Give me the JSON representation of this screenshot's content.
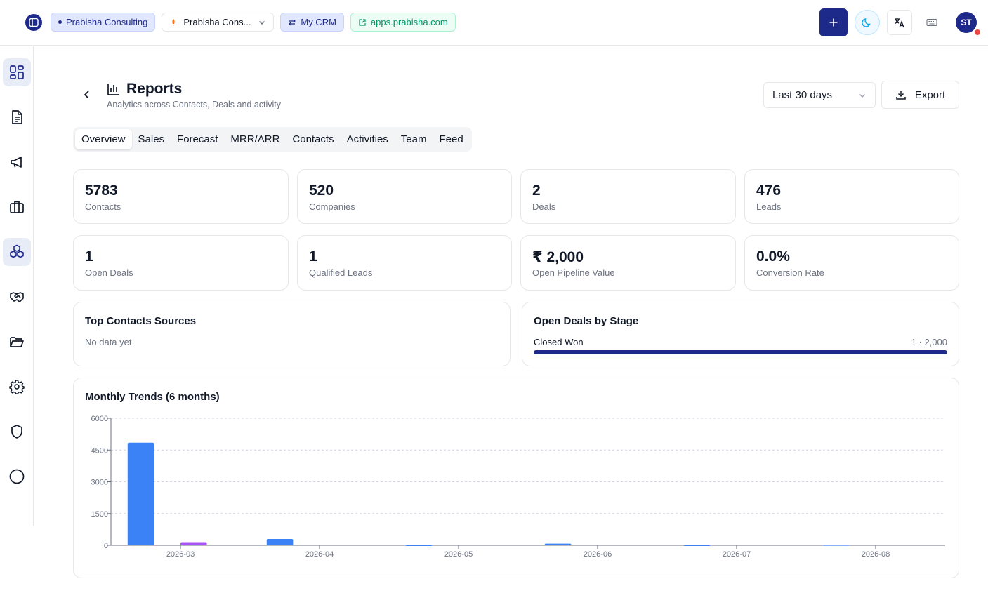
{
  "topbar": {
    "org_chip": "Prabisha Consulting",
    "workspace_select": "Prabisha Cons...",
    "crm_chip": "My CRM",
    "site_link": "apps.prabisha.com",
    "avatar_initials": "ST"
  },
  "sidenav": {
    "items": [
      {
        "icon": "dashboard-icon",
        "active": true
      },
      {
        "icon": "document-icon",
        "active": false
      },
      {
        "icon": "megaphone-icon",
        "active": false
      },
      {
        "icon": "briefcase-icon",
        "active": false
      },
      {
        "icon": "cubes-icon",
        "active": true
      },
      {
        "icon": "handshake-icon",
        "active": false
      },
      {
        "icon": "folder-icon",
        "active": false
      },
      {
        "icon": "gear-icon",
        "active": false
      },
      {
        "icon": "shield-icon",
        "active": false
      },
      {
        "icon": "circle-icon",
        "active": false
      }
    ]
  },
  "header": {
    "title": "Reports",
    "subtitle": "Analytics across Contacts, Deals and activity",
    "range": "Last 30 days",
    "export_label": "Export"
  },
  "tabs": [
    "Overview",
    "Sales",
    "Forecast",
    "MRR/ARR",
    "Contacts",
    "Activities",
    "Team",
    "Feed"
  ],
  "active_tab": "Overview",
  "stats": [
    {
      "value": "5783",
      "label": "Contacts"
    },
    {
      "value": "520",
      "label": "Companies"
    },
    {
      "value": "2",
      "label": "Deals"
    },
    {
      "value": "476",
      "label": "Leads"
    },
    {
      "value": "1",
      "label": "Open Deals"
    },
    {
      "value": "1",
      "label": "Qualified Leads"
    },
    {
      "value": "₹ 2,000",
      "label": "Open Pipeline Value"
    },
    {
      "value": "0.0%",
      "label": "Conversion Rate"
    }
  ],
  "top_sources": {
    "title": "Top Contacts Sources",
    "empty_text": "No data yet"
  },
  "deals_by_stage": {
    "title": "Open Deals by Stage",
    "stages": [
      {
        "name": "Closed Won",
        "value": "1 · 2,000",
        "fraction": 1.0
      }
    ]
  },
  "colors": {
    "accent": "#1e2a8a",
    "series_blue": "#3b82f6",
    "series_purple": "#a855f7"
  },
  "chart_data": {
    "type": "bar",
    "title": "Monthly Trends (6 months)",
    "categories": [
      "2026-03",
      "2026-04",
      "2026-05",
      "2026-06",
      "2026-07",
      "2026-08"
    ],
    "series": [
      {
        "color": "#3b82f6",
        "values": [
          4850,
          300,
          15,
          80,
          15,
          30
        ]
      },
      {
        "color": "#a855f7",
        "values": [
          150,
          0,
          0,
          0,
          0,
          0
        ]
      }
    ],
    "yticks": [
      0,
      1500,
      3000,
      4500,
      6000
    ],
    "ylim": [
      0,
      6000
    ],
    "grid": true
  }
}
